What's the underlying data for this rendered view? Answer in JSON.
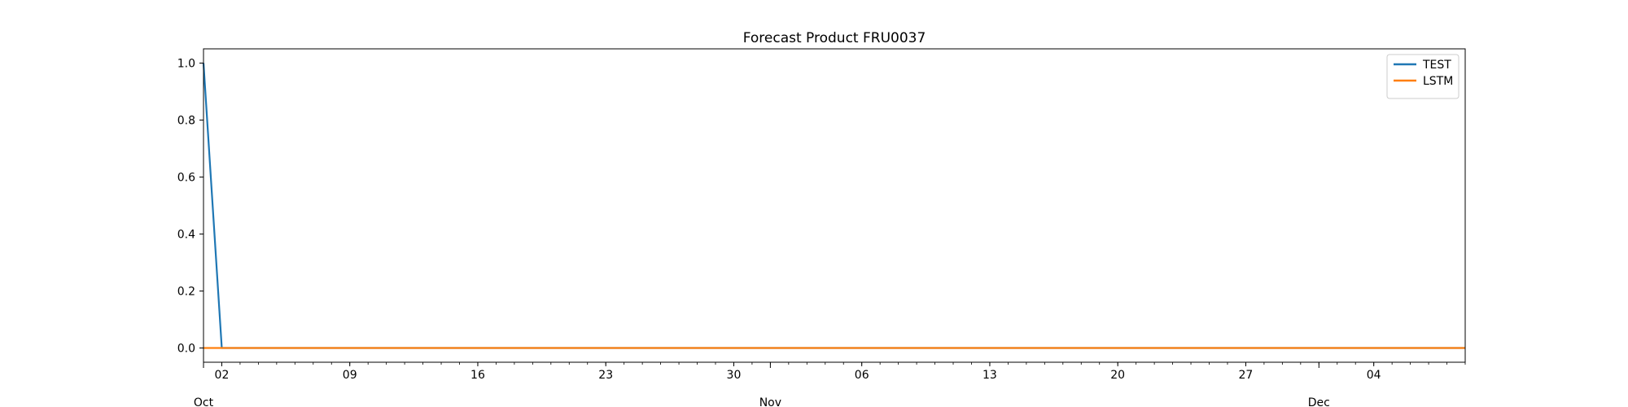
{
  "chart_data": {
    "type": "line",
    "title": "Forecast Product FRU0037",
    "xlabel": "",
    "ylabel": "",
    "x_range": [
      "2023-10-01",
      "2023-12-09"
    ],
    "ylim": [
      -0.05,
      1.05
    ],
    "y_ticks": [
      {
        "value": 0.0,
        "label": "0.0"
      },
      {
        "value": 0.2,
        "label": "0.2"
      },
      {
        "value": 0.4,
        "label": "0.4"
      },
      {
        "value": 0.6,
        "label": "0.6"
      },
      {
        "value": 0.8,
        "label": "0.8"
      },
      {
        "value": 1.0,
        "label": "1.0"
      }
    ],
    "x_major_ticks": [
      {
        "date": "2023-10-02",
        "label": "02"
      },
      {
        "date": "2023-10-09",
        "label": "09"
      },
      {
        "date": "2023-10-16",
        "label": "16"
      },
      {
        "date": "2023-10-23",
        "label": "23"
      },
      {
        "date": "2023-10-30",
        "label": "30"
      },
      {
        "date": "2023-11-06",
        "label": "06"
      },
      {
        "date": "2023-11-13",
        "label": "13"
      },
      {
        "date": "2023-11-20",
        "label": "20"
      },
      {
        "date": "2023-11-27",
        "label": "27"
      },
      {
        "date": "2023-12-04",
        "label": "04"
      }
    ],
    "x_month_labels": [
      {
        "date": "2023-10-01",
        "label": "Oct"
      },
      {
        "date": "2023-11-01",
        "label": "Nov"
      },
      {
        "date": "2023-12-01",
        "label": "Dec"
      }
    ],
    "series": [
      {
        "name": "TEST",
        "color": "#1f77b4",
        "points": [
          {
            "x": "2023-10-01",
            "y": 1.0
          },
          {
            "x": "2023-10-02",
            "y": 0.0
          },
          {
            "x": "2023-12-09",
            "y": 0.0
          }
        ]
      },
      {
        "name": "LSTM",
        "color": "#ff7f0e",
        "points": [
          {
            "x": "2023-10-01",
            "y": 0.0
          },
          {
            "x": "2023-12-09",
            "y": 0.0
          }
        ]
      }
    ],
    "legend": {
      "position": "top-right"
    },
    "grid": false
  }
}
